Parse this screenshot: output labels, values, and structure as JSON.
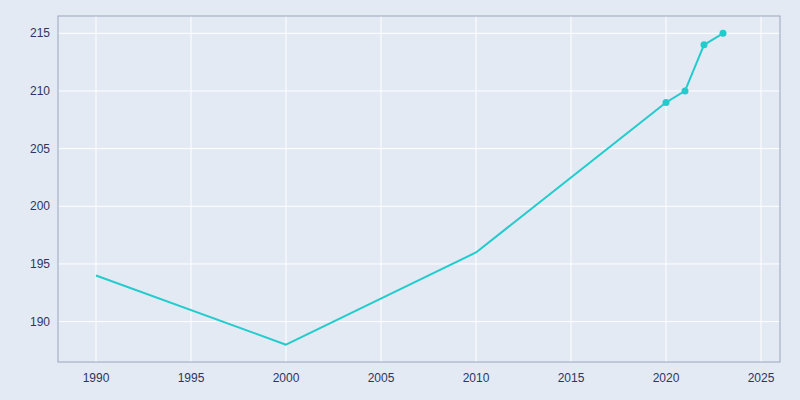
{
  "chart_data": {
    "type": "line",
    "x": [
      1990,
      2000,
      2010,
      2020,
      2021,
      2022,
      2023
    ],
    "series": [
      {
        "type": "line",
        "color": "#22cccc",
        "values": [
          194,
          188,
          196,
          209,
          210,
          214,
          215
        ]
      },
      {
        "type": "scatter",
        "marker": "circle",
        "color": "#22cccc",
        "values": [
          null,
          null,
          null,
          209,
          210,
          214,
          215
        ]
      }
    ],
    "xlim": [
      1988,
      2026
    ],
    "ylim": [
      186.5,
      216.5
    ],
    "xticks": [
      1990,
      1995,
      2000,
      2005,
      2010,
      2015,
      2020,
      2025
    ],
    "yticks": [
      190,
      195,
      200,
      205,
      210,
      215
    ],
    "grid": true
  }
}
